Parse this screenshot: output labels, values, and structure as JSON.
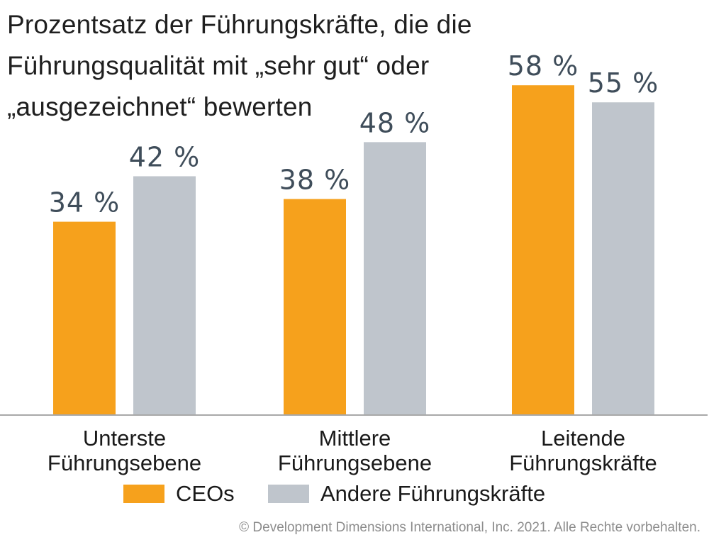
{
  "chart_data": {
    "type": "bar",
    "title": "Prozentsatz der Führungskräfte, die die Führungsqualität mit „sehr gut“ oder „ausgezeichnet“ bewerten",
    "categories": [
      [
        "Unterste",
        "Führungsebene"
      ],
      [
        "Mittlere",
        "Führungsebene"
      ],
      [
        "Leitende",
        "Führungskräfte"
      ]
    ],
    "series": [
      {
        "name": "CEOs",
        "values": [
          34,
          38,
          58
        ],
        "labels": [
          "34 %",
          "38 %",
          "58 %"
        ],
        "color": "#f6a11c"
      },
      {
        "name": "Andere Führungskräfte",
        "values": [
          42,
          48,
          55
        ],
        "labels": [
          "42 %",
          "48 %",
          "55 %"
        ],
        "color": "#bfc5cc"
      }
    ],
    "ylim": [
      0,
      73
    ],
    "grid": false,
    "legend_position": "bottom-center",
    "axis_color": "#a8a8a8"
  },
  "legend": {
    "ceo_label": "CEOs",
    "other_label": "Andere Führungskräfte"
  },
  "copyright": "© Development Dimensions International, Inc. 2021. Alle Rechte vorbehalten."
}
